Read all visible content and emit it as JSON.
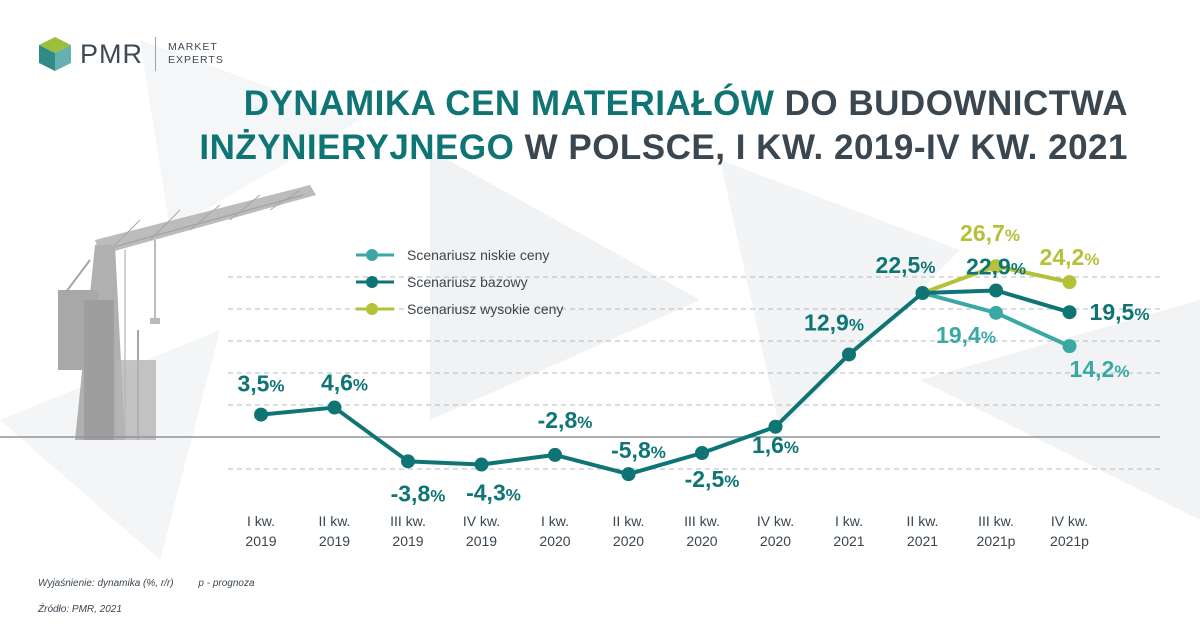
{
  "logo": {
    "brand": "PMR",
    "tagline_1": "MARKET",
    "tagline_2": "EXPERTS"
  },
  "title": {
    "line1_part1": "DYNAMIKA CEN MATERIAŁÓW",
    "line1_part2": "DO BUDOWNICTWA",
    "line2_part1": "INŻYNIERYJNEGO",
    "line2_part2": "W POLSCE, I KW. 2019-IV KW. 2021"
  },
  "footnotes": {
    "explanation": "Wyjaśnienie: dynamika (%, r/r)",
    "forecast_note": "p - prognoza",
    "source": "Źródło: PMR, 2021"
  },
  "colors": {
    "base": "#0f7574",
    "low": "#3aa9a4",
    "high": "#b6c13a",
    "title_teal": "#0f7574",
    "title_dark": "#3a4650"
  },
  "chart_data": {
    "type": "line",
    "categories": [
      [
        "I kw.",
        "2019"
      ],
      [
        "II kw.",
        "2019"
      ],
      [
        "III kw.",
        "2019"
      ],
      [
        "IV kw.",
        "2019"
      ],
      [
        "I kw.",
        "2020"
      ],
      [
        "II kw.",
        "2020"
      ],
      [
        "III kw.",
        "2020"
      ],
      [
        "IV kw.",
        "2020"
      ],
      [
        "I kw.",
        "2021"
      ],
      [
        "II kw.",
        "2021"
      ],
      [
        "III kw.",
        "2021p"
      ],
      [
        "IV kw.",
        "2021p"
      ]
    ],
    "series": [
      {
        "name": "Scenariusz bazowy",
        "values": [
          3.5,
          4.6,
          -3.8,
          -4.3,
          -2.8,
          -5.8,
          -2.5,
          1.6,
          12.9,
          22.5,
          22.9,
          19.5
        ],
        "labels": [
          "3,5",
          "4,6",
          "-3,8",
          "-4,3",
          "-2,8",
          "-5,8",
          "-2,5",
          "1,6",
          "12,9",
          "22,5",
          "22,9",
          "19,5"
        ]
      },
      {
        "name": "Scenariusz niskie ceny",
        "values": [
          null,
          null,
          null,
          null,
          null,
          null,
          null,
          null,
          null,
          22.5,
          19.4,
          14.2
        ],
        "labels": [
          null,
          null,
          null,
          null,
          null,
          null,
          null,
          null,
          null,
          null,
          "19,4",
          "14,2"
        ]
      },
      {
        "name": "Scenariusz wysokie ceny",
        "values": [
          null,
          null,
          null,
          null,
          null,
          null,
          null,
          null,
          null,
          22.5,
          26.7,
          24.2
        ],
        "labels": [
          null,
          null,
          null,
          null,
          null,
          null,
          null,
          null,
          null,
          null,
          "26,7",
          "24,2"
        ]
      }
    ],
    "unit": "%",
    "legend_order": [
      "Scenariusz niskie ceny",
      "Scenariusz bazowy",
      "Scenariusz wysokie ceny"
    ],
    "legend_position": "top-center",
    "ylim": [
      -7,
      27
    ],
    "grid": true
  }
}
